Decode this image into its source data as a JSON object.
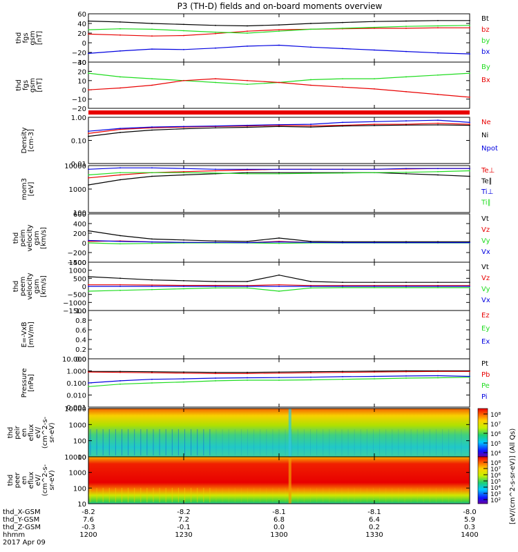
{
  "title": "P3 (TH-D) fields and on-board moments overview",
  "colors": {
    "black": "#000000",
    "red": "#e80000",
    "green": "#1fdc1f",
    "blue": "#0000e0"
  },
  "chart_data": [
    {
      "type": "line",
      "name": "fgs_gsm",
      "ylabel_lines": [
        "thd",
        "fgs",
        "gsm",
        "[nT]"
      ],
      "ylim": [
        -40,
        60
      ],
      "yticks": [
        "60",
        "40",
        "20",
        "0",
        "−20",
        "−40"
      ],
      "series": [
        {
          "name": "Bt",
          "color": "black",
          "t": [
            1200,
            1210,
            1220,
            1230,
            1240,
            1250,
            1300,
            1310,
            1320,
            1330,
            1340,
            1350,
            1400
          ],
          "values": [
            45,
            43,
            40,
            38,
            36,
            35,
            37,
            40,
            42,
            44,
            45,
            46,
            46
          ]
        },
        {
          "name": "bz",
          "color": "red",
          "t": [
            1200,
            1210,
            1220,
            1230,
            1240,
            1250,
            1300,
            1310,
            1320,
            1330,
            1340,
            1350,
            1400
          ],
          "values": [
            18,
            16,
            14,
            15,
            19,
            24,
            27,
            28,
            29,
            30,
            30,
            31,
            31
          ]
        },
        {
          "name": "by",
          "color": "green",
          "t": [
            1200,
            1210,
            1220,
            1230,
            1240,
            1250,
            1300,
            1310,
            1320,
            1330,
            1340,
            1350,
            1400
          ],
          "values": [
            27,
            29,
            28,
            25,
            22,
            20,
            24,
            28,
            30,
            32,
            34,
            35,
            36
          ]
        },
        {
          "name": "bx",
          "color": "blue",
          "t": [
            1200,
            1210,
            1220,
            1230,
            1240,
            1250,
            1300,
            1310,
            1320,
            1330,
            1340,
            1350,
            1400
          ],
          "values": [
            -22,
            -17,
            -13,
            -14,
            -11,
            -7,
            -5,
            -9,
            -12,
            -15,
            -18,
            -21,
            -23
          ]
        }
      ]
    },
    {
      "type": "line",
      "name": "fgs_gsm_Bx_By",
      "ylabel_lines": [
        "thd",
        "fgs",
        "gsm",
        "[nT]"
      ],
      "ylim": [
        -20,
        30
      ],
      "yticks": [
        "30",
        "20",
        "10",
        "0",
        "−10",
        "−20"
      ],
      "series": [
        {
          "name": "By",
          "color": "green",
          "t": [
            1200,
            1210,
            1220,
            1230,
            1240,
            1250,
            1300,
            1310,
            1320,
            1330,
            1340,
            1350,
            1400
          ],
          "values": [
            18,
            14,
            12,
            10,
            8,
            6,
            8,
            11,
            12,
            12,
            14,
            16,
            18
          ]
        },
        {
          "name": "Bx",
          "color": "red",
          "t": [
            1200,
            1210,
            1220,
            1230,
            1240,
            1250,
            1300,
            1310,
            1320,
            1330,
            1340,
            1350,
            1400
          ],
          "values": [
            0,
            2,
            5,
            10,
            12,
            10,
            8,
            5,
            3,
            1,
            -2,
            -5,
            -8
          ]
        }
      ]
    },
    {
      "type": "line",
      "name": "density",
      "ylabel_lines": [
        "Density",
        "[cm-3]"
      ],
      "yscale": "log",
      "ylim": [
        0.01,
        1.0
      ],
      "yticks": [
        "1.00",
        "0.10",
        "0.01"
      ],
      "series": [
        {
          "name": "Ne",
          "color": "red",
          "t": [
            1200,
            1210,
            1220,
            1230,
            1240,
            1250,
            1300,
            1310,
            1320,
            1330,
            1340,
            1350,
            1400
          ],
          "values": [
            0.2,
            0.3,
            0.35,
            0.38,
            0.4,
            0.42,
            0.45,
            0.43,
            0.45,
            0.5,
            0.5,
            0.55,
            0.5
          ]
        },
        {
          "name": "Ni",
          "color": "black",
          "t": [
            1200,
            1210,
            1220,
            1230,
            1240,
            1250,
            1300,
            1310,
            1320,
            1330,
            1340,
            1350,
            1400
          ],
          "values": [
            0.15,
            0.22,
            0.28,
            0.32,
            0.35,
            0.37,
            0.4,
            0.38,
            0.42,
            0.44,
            0.46,
            0.47,
            0.45
          ]
        },
        {
          "name": "Npot",
          "color": "blue",
          "t": [
            1200,
            1210,
            1220,
            1230,
            1240,
            1250,
            1300,
            1310,
            1320,
            1330,
            1340,
            1350,
            1400
          ],
          "values": [
            0.25,
            0.33,
            0.38,
            0.4,
            0.42,
            0.45,
            0.48,
            0.5,
            0.6,
            0.65,
            0.7,
            0.75,
            0.6
          ]
        }
      ]
    },
    {
      "type": "line",
      "name": "temperature",
      "ylabel_lines": [
        "mom3",
        "[eV]"
      ],
      "yscale": "log",
      "ylim": [
        100,
        10000
      ],
      "yticks": [
        "10000",
        "1000",
        "100"
      ],
      "series": [
        {
          "name": "Te⊥",
          "color": "red",
          "t": [
            1200,
            1210,
            1220,
            1230,
            1240,
            1250,
            1300,
            1310,
            1320,
            1330,
            1340,
            1350,
            1400
          ],
          "values": [
            3000,
            4000,
            5000,
            5500,
            6000,
            6500,
            7000,
            7000,
            7000,
            7000,
            7200,
            7500,
            7500
          ]
        },
        {
          "name": "Te∥",
          "color": "black",
          "t": [
            1200,
            1210,
            1220,
            1230,
            1240,
            1250,
            1300,
            1310,
            1320,
            1330,
            1340,
            1350,
            1400
          ],
          "values": [
            1500,
            2500,
            3500,
            4000,
            4500,
            5000,
            5000,
            5000,
            5000,
            5000,
            4500,
            4000,
            3500
          ]
        },
        {
          "name": "Ti⊥",
          "color": "blue",
          "t": [
            1200,
            1210,
            1220,
            1230,
            1240,
            1250,
            1300,
            1310,
            1320,
            1330,
            1340,
            1350,
            1400
          ],
          "values": [
            7000,
            8000,
            8000,
            7500,
            7000,
            7000,
            7000,
            7000,
            7000,
            7000,
            7500,
            7500,
            7500
          ]
        },
        {
          "name": "Ti∥",
          "color": "green",
          "t": [
            1200,
            1210,
            1220,
            1230,
            1240,
            1250,
            1300,
            1310,
            1320,
            1330,
            1340,
            1350,
            1400
          ],
          "values": [
            4000,
            5000,
            5000,
            5000,
            4800,
            4500,
            4500,
            4700,
            4800,
            5000,
            5200,
            5500,
            6000
          ]
        }
      ]
    },
    {
      "type": "line",
      "name": "peim_velocity",
      "ylabel_lines": [
        "thd",
        "peim",
        "velocity",
        "gsm",
        "[km/s]"
      ],
      "ylim": [
        -400,
        600
      ],
      "yticks": [
        "600",
        "400",
        "200",
        "0",
        "−200",
        "−400"
      ],
      "series": [
        {
          "name": "Vt",
          "color": "black",
          "t": [
            1200,
            1210,
            1220,
            1230,
            1240,
            1250,
            1300,
            1310,
            1320,
            1330,
            1340,
            1350,
            1400
          ],
          "values": [
            250,
            150,
            80,
            60,
            40,
            30,
            100,
            30,
            25,
            25,
            25,
            25,
            25
          ]
        },
        {
          "name": "Vz",
          "color": "red",
          "t": [
            1200,
            1210,
            1220,
            1230,
            1240,
            1250,
            1300,
            1310,
            1320,
            1330,
            1340,
            1350,
            1400
          ],
          "values": [
            30,
            40,
            20,
            10,
            10,
            5,
            30,
            10,
            5,
            5,
            5,
            5,
            5
          ]
        },
        {
          "name": "Vy",
          "color": "green",
          "t": [
            1200,
            1210,
            1220,
            1230,
            1240,
            1250,
            1300,
            1310,
            1320,
            1330,
            1340,
            1350,
            1400
          ],
          "values": [
            0,
            -20,
            -10,
            0,
            0,
            0,
            -10,
            0,
            0,
            0,
            0,
            0,
            0
          ]
        },
        {
          "name": "Vx",
          "color": "blue",
          "t": [
            1200,
            1210,
            1220,
            1230,
            1240,
            1250,
            1300,
            1310,
            1320,
            1330,
            1340,
            1350,
            1400
          ],
          "values": [
            50,
            30,
            20,
            10,
            10,
            5,
            20,
            10,
            5,
            5,
            5,
            5,
            5
          ]
        }
      ]
    },
    {
      "type": "line",
      "name": "peem_velocity",
      "ylabel_lines": [
        "thd",
        "peem",
        "velocity",
        "gsm",
        "[km/s]"
      ],
      "ylim": [
        -1500,
        1500
      ],
      "yticks": [
        "1500",
        "1000",
        "500",
        "0",
        "−500",
        "−1000",
        "−1500"
      ],
      "series": [
        {
          "name": "Vt",
          "color": "black",
          "t": [
            1200,
            1210,
            1220,
            1230,
            1240,
            1250,
            1300,
            1310,
            1320,
            1330,
            1340,
            1350,
            1400
          ],
          "values": [
            600,
            500,
            400,
            350,
            300,
            300,
            700,
            300,
            250,
            250,
            250,
            250,
            250
          ]
        },
        {
          "name": "Vz",
          "color": "red",
          "t": [
            1200,
            1210,
            1220,
            1230,
            1240,
            1250,
            1300,
            1310,
            1320,
            1330,
            1340,
            1350,
            1400
          ],
          "values": [
            100,
            100,
            80,
            60,
            60,
            50,
            100,
            50,
            50,
            50,
            50,
            50,
            50
          ]
        },
        {
          "name": "Vy",
          "color": "green",
          "t": [
            1200,
            1210,
            1220,
            1230,
            1240,
            1250,
            1300,
            1310,
            1320,
            1330,
            1340,
            1350,
            1400
          ],
          "values": [
            -300,
            -250,
            -200,
            -150,
            -100,
            -100,
            -300,
            -100,
            -80,
            -80,
            -80,
            -80,
            -80
          ]
        },
        {
          "name": "Vx",
          "color": "blue",
          "t": [
            1200,
            1210,
            1220,
            1230,
            1240,
            1250,
            1300,
            1310,
            1320,
            1330,
            1340,
            1350,
            1400
          ],
          "values": [
            0,
            0,
            0,
            0,
            0,
            0,
            0,
            0,
            0,
            0,
            0,
            0,
            0
          ]
        }
      ]
    },
    {
      "type": "line",
      "name": "efield",
      "ylabel_lines": [
        "E=-VxB",
        "[mV/m]"
      ],
      "ylim": [
        0,
        1.0
      ],
      "yticks": [
        "1.0",
        "0.8",
        "0.6",
        "0.4",
        "0.2",
        "0.0"
      ],
      "series": [
        {
          "name": "Ez",
          "color": "red",
          "values": []
        },
        {
          "name": "Ey",
          "color": "green",
          "values": []
        },
        {
          "name": "Ex",
          "color": "blue",
          "values": []
        }
      ]
    },
    {
      "type": "line",
      "name": "pressure",
      "ylabel_lines": [
        "Pressure",
        "[nPa]"
      ],
      "yscale": "log",
      "ylim": [
        0.001,
        10.0
      ],
      "yticks": [
        "10.000",
        "1.000",
        "0.100",
        "0.010",
        "0.001"
      ],
      "series": [
        {
          "name": "Pt",
          "color": "black",
          "t": [
            1200,
            1210,
            1220,
            1230,
            1240,
            1250,
            1300,
            1310,
            1320,
            1330,
            1340,
            1350,
            1400
          ],
          "values": [
            0.9,
            0.9,
            0.85,
            0.8,
            0.75,
            0.75,
            0.8,
            0.85,
            0.9,
            0.95,
            1.0,
            1.0,
            1.0
          ]
        },
        {
          "name": "Pb",
          "color": "red",
          "t": [
            1200,
            1210,
            1220,
            1230,
            1240,
            1250,
            1300,
            1310,
            1320,
            1330,
            1340,
            1350,
            1400
          ],
          "values": [
            0.8,
            0.75,
            0.7,
            0.65,
            0.6,
            0.6,
            0.65,
            0.7,
            0.75,
            0.8,
            0.85,
            0.9,
            0.9
          ]
        },
        {
          "name": "Pe",
          "color": "green",
          "t": [
            1200,
            1210,
            1220,
            1230,
            1240,
            1250,
            1300,
            1310,
            1320,
            1330,
            1340,
            1350,
            1400
          ],
          "values": [
            0.05,
            0.08,
            0.1,
            0.12,
            0.15,
            0.17,
            0.17,
            0.18,
            0.2,
            0.22,
            0.25,
            0.27,
            0.3
          ]
        },
        {
          "name": "Pi",
          "color": "blue",
          "t": [
            1200,
            1210,
            1220,
            1230,
            1240,
            1250,
            1300,
            1310,
            1320,
            1330,
            1340,
            1350,
            1400
          ],
          "values": [
            0.1,
            0.15,
            0.2,
            0.22,
            0.25,
            0.27,
            0.28,
            0.3,
            0.33,
            0.35,
            0.38,
            0.4,
            0.35
          ]
        }
      ]
    },
    {
      "type": "heatmap",
      "name": "peir_en_eflux",
      "ylabel_lines": [
        "thd",
        "peir",
        "en",
        "eflux",
        "eV/",
        "(cm^2-s-",
        "sr-eV)"
      ],
      "yscale": "log",
      "ylim": [
        7,
        20000
      ],
      "yticks": [
        "10000",
        "1000",
        "100",
        "10"
      ],
      "colorbar_ticks": [
        "10⁸",
        "10⁷",
        "10⁶",
        "10⁵",
        "10⁴"
      ]
    },
    {
      "type": "heatmap",
      "name": "peer_en_eflux",
      "ylabel_lines": [
        "thd",
        "peer",
        "en",
        "eflux",
        "eV/",
        "(cm^2-s-",
        "sr-eV)"
      ],
      "yscale": "log",
      "ylim": [
        7,
        20000
      ],
      "yticks": [
        "10000",
        "1000",
        "100",
        "10"
      ],
      "colorbar_ticks": [
        "10⁸",
        "10⁷",
        "10⁶",
        "10⁵",
        "10⁴",
        "10³",
        "10²"
      ]
    }
  ],
  "colorbar_label": "[eV/(cm^2-s-sr-eV)] (All Qs)",
  "xaxis": {
    "rows": [
      {
        "label": "thd_X-GSM",
        "values": [
          "-8.2",
          "-8.2",
          "-8.1",
          "-8.1",
          "-8.0"
        ]
      },
      {
        "label": "thd_Y-GSM",
        "values": [
          "7.6",
          "7.2",
          "6.8",
          "6.4",
          "5.9"
        ]
      },
      {
        "label": "thd_Z-GSM",
        "values": [
          "-0.3",
          "-0.1",
          "0.0",
          "0.2",
          "0.3"
        ]
      },
      {
        "label": "hhmm",
        "values": [
          "1200",
          "1230",
          "1300",
          "1330",
          "1400"
        ]
      }
    ],
    "date": "2017 Apr 09"
  }
}
